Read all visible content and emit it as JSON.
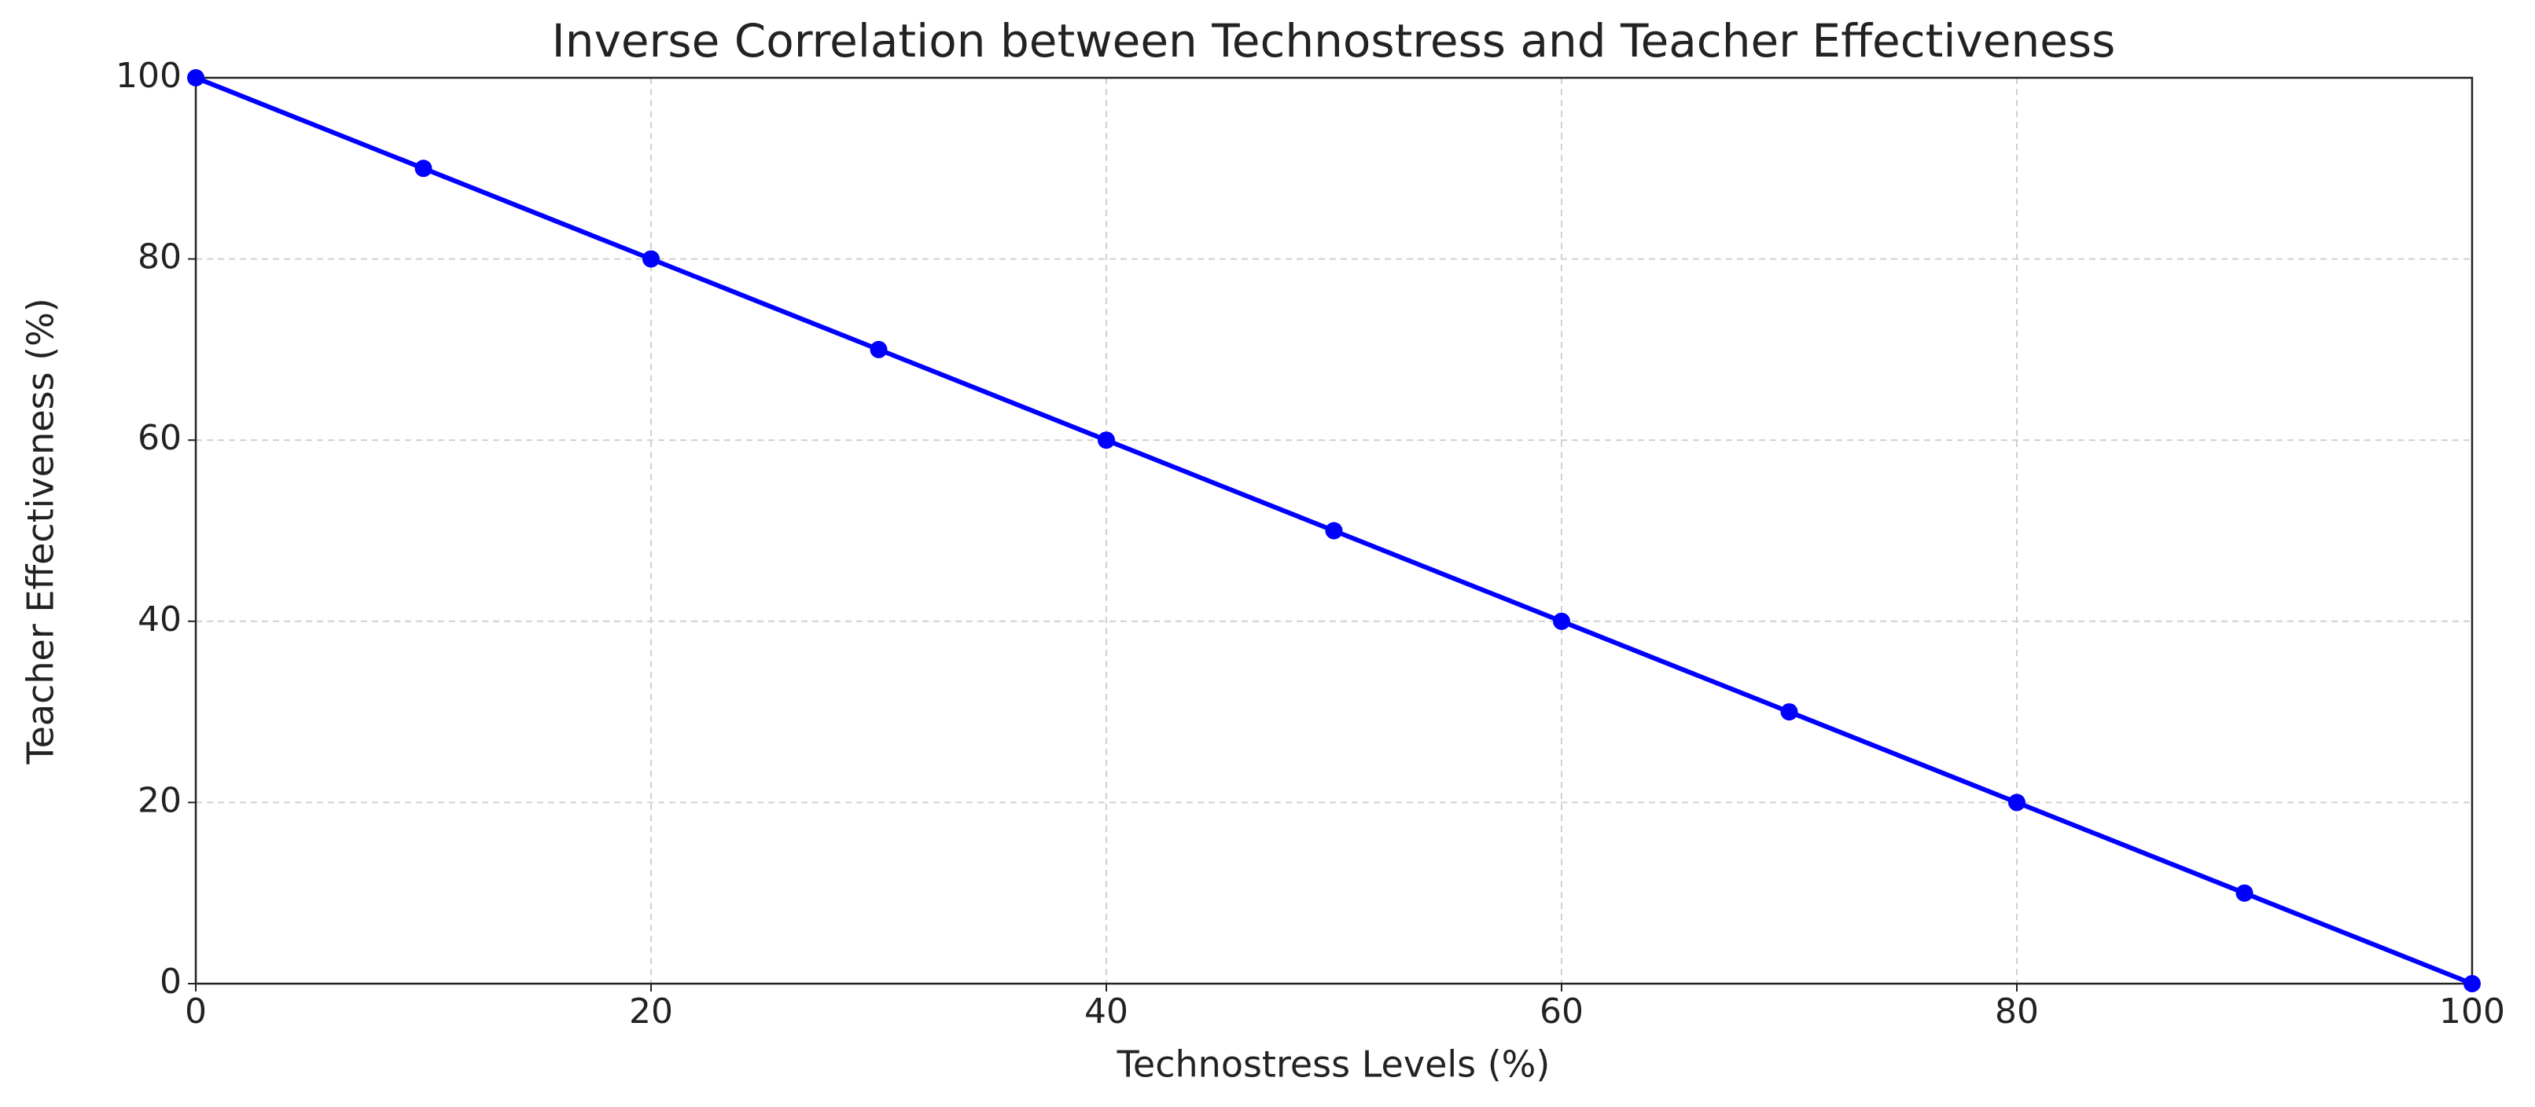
{
  "chart_data": {
    "type": "line",
    "title": "Inverse Correlation between Technostress and Teacher Effectiveness",
    "x_label": "Technostress Levels (%)",
    "y_label": "Teacher Effectiveness (%)",
    "x": [
      0,
      10,
      20,
      30,
      40,
      50,
      60,
      70,
      80,
      90,
      100
    ],
    "values": [
      100,
      90,
      80,
      70,
      60,
      50,
      40,
      30,
      20,
      10,
      0
    ],
    "color": "#0000ff",
    "markers": true,
    "xlim": [
      0,
      100
    ],
    "xticks": [
      0,
      20,
      40,
      60,
      80,
      100
    ],
    "ylim": [
      0,
      100
    ],
    "yticks": [
      0,
      20,
      40,
      60,
      80,
      100
    ],
    "grid": true
  }
}
